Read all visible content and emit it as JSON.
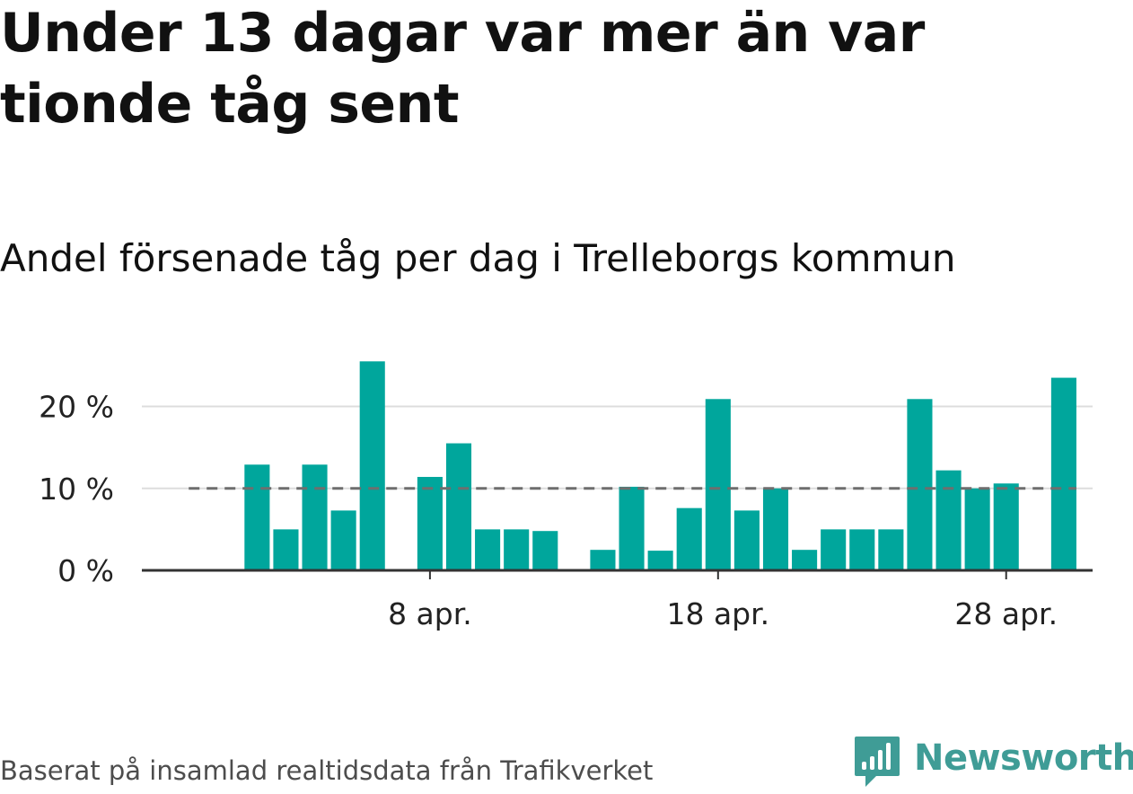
{
  "title": "Under 13 dagar var mer än var tionde tåg sent",
  "subtitle": "Andel försenade tåg per dag i Trelleborgs kommun",
  "source": "Baserat på insamlad realtidsdata från Trafikverket",
  "logo": {
    "text": "Newsworthy",
    "icon": "bar-chart-speech-bubble-icon",
    "color": "#3f9c96"
  },
  "colors": {
    "bar": "#00a69c",
    "reference_line": "#6e6e6e",
    "grid": "#dddddd",
    "axis": "#333333"
  },
  "chart_data": {
    "type": "bar",
    "x_unit": "date",
    "y_unit": "%",
    "ylim": [
      0,
      25
    ],
    "y_ticks": [
      {
        "value": 0,
        "label": "0 %"
      },
      {
        "value": 10,
        "label": "10 %"
      },
      {
        "value": 20,
        "label": "20 %"
      }
    ],
    "x_ticks": [
      {
        "date": "2024-04-08",
        "label": "8 apr."
      },
      {
        "date": "2024-04-18",
        "label": "18 apr."
      },
      {
        "date": "2024-04-28",
        "label": "28 apr."
      }
    ],
    "x_range": [
      "2024-03-29",
      "2024-05-01"
    ],
    "grid": true,
    "reference_line": {
      "value": 10,
      "from": "2024-04-01",
      "to": "2024-04-30",
      "style": "dashed"
    },
    "dates": [
      "2024-04-02",
      "2024-04-03",
      "2024-04-04",
      "2024-04-05",
      "2024-04-06",
      "2024-04-07",
      "2024-04-08",
      "2024-04-09",
      "2024-04-10",
      "2024-04-11",
      "2024-04-12",
      "2024-04-13",
      "2024-04-14",
      "2024-04-15",
      "2024-04-16",
      "2024-04-17",
      "2024-04-18",
      "2024-04-19",
      "2024-04-20",
      "2024-04-21",
      "2024-04-22",
      "2024-04-23",
      "2024-04-24",
      "2024-04-25",
      "2024-04-26",
      "2024-04-27",
      "2024-04-28",
      "2024-04-29",
      "2024-04-30"
    ],
    "values": [
      12.9,
      5.0,
      12.9,
      7.3,
      25.5,
      null,
      11.4,
      15.5,
      5.0,
      5.0,
      4.8,
      null,
      2.5,
      10.2,
      2.4,
      7.6,
      20.9,
      7.3,
      10.0,
      2.5,
      5.0,
      5.0,
      5.0,
      20.9,
      12.2,
      10.0,
      10.6,
      null,
      23.5
    ]
  }
}
